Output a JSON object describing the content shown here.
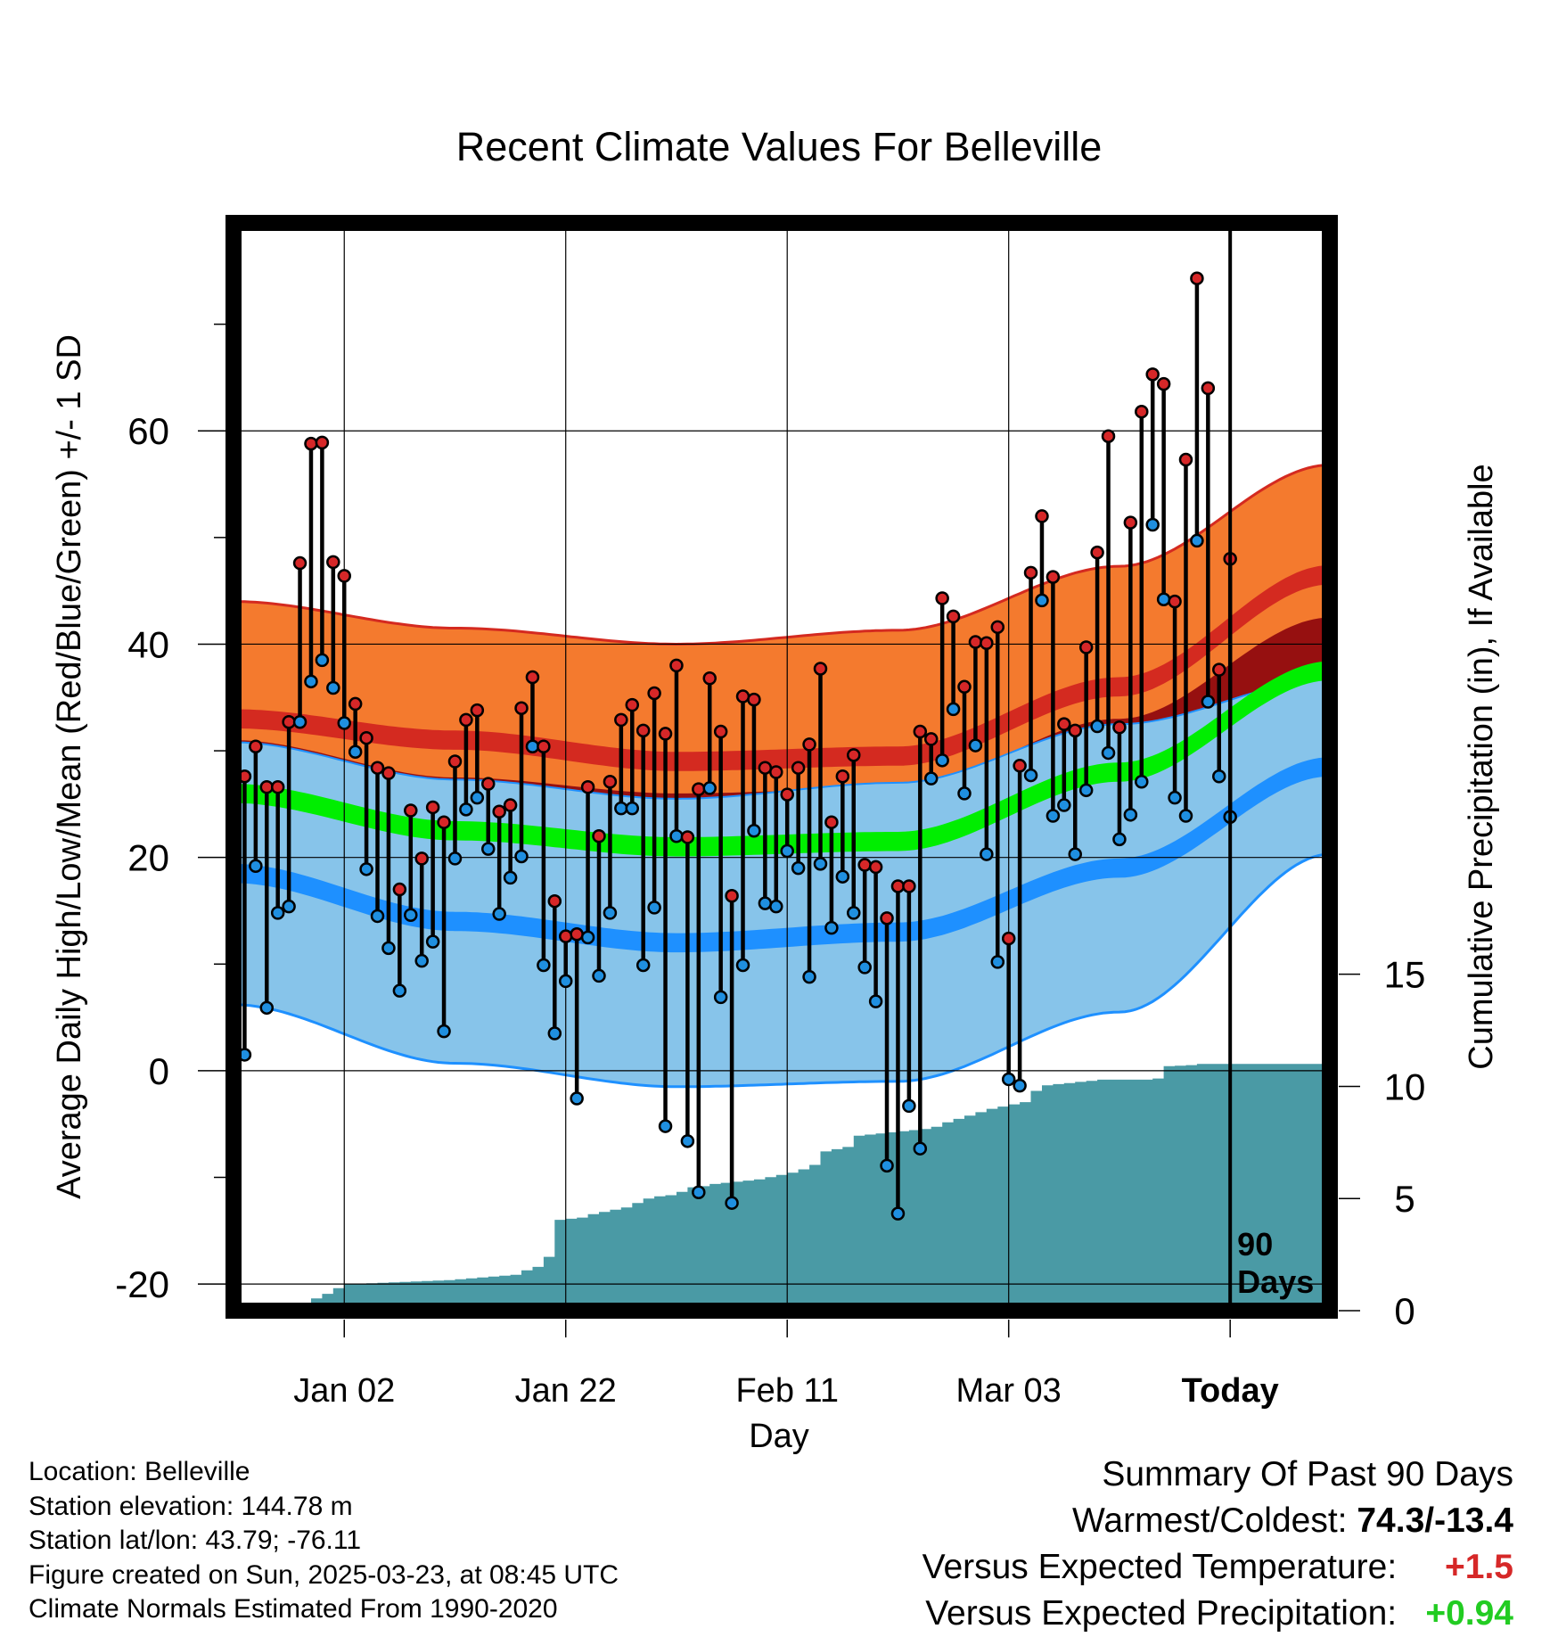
{
  "chart_data": {
    "type": "line",
    "title": "Recent Climate Values For Belleville",
    "xlabel": "Day",
    "ylabel_left": "Average Daily High/Low/Mean (Red/Blue/Green) +/- 1 SD",
    "ylabel_right": "Cumulative Precipitation (in), If Available",
    "x_tick_labels": [
      "Jan 02",
      "Jan 22",
      "Feb 11",
      "Mar 03",
      "Today"
    ],
    "x_tick_days": [
      -80,
      -60,
      -40,
      -20,
      0
    ],
    "y_left_ticks": [
      "-20",
      "0",
      "20",
      "40",
      "60"
    ],
    "y_left_tick_values": [
      -20,
      0,
      20,
      40,
      60
    ],
    "y_left_range": [
      -22.5,
      79.5
    ],
    "y_right_ticks": [
      "0",
      "5",
      "10",
      "15"
    ],
    "y_right_tick_values": [
      0,
      5,
      10,
      15
    ],
    "y_right_range": [
      0,
      48.5
    ],
    "x_range": [
      -90,
      9
    ],
    "grid": true,
    "today_marker": {
      "x": 0,
      "label_line1": "90",
      "label_line2": "Days"
    },
    "normals": {
      "days": [
        -90,
        -70,
        -50,
        -30,
        -10,
        9
      ],
      "high_mean": [
        33,
        31,
        29,
        29.5,
        36,
        46.5
      ],
      "high_sd": [
        11,
        10.5,
        11,
        11.8,
        11.3,
        10.3
      ],
      "low_mean": [
        18.5,
        14,
        12,
        13,
        19,
        28.5
      ],
      "low_sd": [
        12.3,
        13.3,
        13.5,
        14,
        13.5,
        8.2
      ],
      "mean": [
        26,
        22.5,
        21,
        21.5,
        28,
        37.5
      ],
      "band_halfwidth": 0.9,
      "mean_sd": 5
    },
    "series": [
      {
        "name": "High",
        "color": "#d62728",
        "values": [
          27.6,
          30.4,
          26.6,
          26.6,
          32.7,
          47.6,
          58.8,
          58.9,
          47.7,
          46.4,
          34.4,
          31.2,
          28.4,
          27.9,
          17,
          24.4,
          19.9,
          24.7,
          23.3,
          29,
          32.9,
          33.8,
          26.9,
          24.3,
          24.9,
          34,
          36.9,
          30.4,
          15.9,
          12.6,
          12.8,
          26.6,
          22,
          27.1,
          32.9,
          34.3,
          31.9,
          35.4,
          31.6,
          38,
          21.9,
          26.4,
          36.8,
          31.8,
          16.4,
          35.1,
          34.8,
          28.4,
          28,
          25.9,
          28.4,
          30.6,
          37.7,
          23.3,
          27.6,
          29.6,
          19.3,
          19.1,
          14.3,
          17.3,
          17.3,
          31.8,
          31.1,
          44.3,
          42.6,
          36,
          40.2,
          40.1,
          41.6,
          12.4,
          28.6,
          46.7,
          52,
          46.3,
          32.5,
          31.9,
          39.7,
          48.6,
          59.5,
          32.2,
          51.4,
          61.8,
          65.3,
          64.4,
          44,
          57.3,
          74.3,
          64,
          37.6,
          48
        ]
      },
      {
        "name": "Low",
        "color": "#1f8fe0",
        "values": [
          1.5,
          19.2,
          5.9,
          14.8,
          15.4,
          32.7,
          36.5,
          38.5,
          35.9,
          32.6,
          29.9,
          18.9,
          14.5,
          11.5,
          7.5,
          14.6,
          10.3,
          12.1,
          3.7,
          19.9,
          24.5,
          25.6,
          20.8,
          14.7,
          18.1,
          20.1,
          30.4,
          9.9,
          3.5,
          8.4,
          -2.6,
          12.5,
          8.9,
          14.8,
          24.6,
          24.6,
          9.9,
          15.3,
          -5.2,
          22,
          -6.6,
          -11.4,
          26.5,
          6.9,
          -12.4,
          9.9,
          22.5,
          15.7,
          15.4,
          20.6,
          19,
          8.8,
          19.4,
          13.4,
          18.2,
          14.8,
          9.7,
          6.5,
          -8.9,
          -13.4,
          -3.3,
          -7.3,
          27.4,
          29.1,
          33.9,
          26,
          30.5,
          20.3,
          10.2,
          -0.8,
          -1.4,
          27.7,
          44.1,
          23.9,
          24.9,
          20.3,
          26.3,
          32.3,
          29.8,
          21.7,
          24,
          27.1,
          51.2,
          44.2,
          25.6,
          23.9,
          49.7,
          34.6,
          27.6,
          23.8
        ]
      },
      {
        "name": "Precipitation",
        "color": "#4a9aa5",
        "values": [
          0,
          0,
          0,
          0,
          0,
          0.15,
          0.35,
          0.55,
          0.75,
          1,
          1.2,
          1.2,
          1.22,
          1.24,
          1.26,
          1.28,
          1.3,
          1.32,
          1.34,
          1.36,
          1.4,
          1.44,
          1.48,
          1.52,
          1.56,
          1.6,
          1.8,
          1.95,
          2.4,
          4.05,
          4.1,
          4.15,
          4.3,
          4.4,
          4.5,
          4.6,
          4.8,
          5,
          5.1,
          5.15,
          5.3,
          5.5,
          5.55,
          5.65,
          5.7,
          5.75,
          5.8,
          5.85,
          5.95,
          6.05,
          6.15,
          6.3,
          6.5,
          7.1,
          7.2,
          7.3,
          7.8,
          7.85,
          7.9,
          7.95,
          8,
          8.05,
          8.1,
          8.2,
          8.4,
          8.55,
          8.7,
          8.85,
          9,
          9.1,
          9.2,
          9.3,
          9.8,
          10.05,
          10.1,
          10.15,
          10.2,
          10.25,
          10.3,
          10.3,
          10.3,
          10.3,
          10.3,
          10.35,
          10.9,
          10.92,
          10.95,
          11,
          11,
          11
        ]
      }
    ]
  },
  "footer_left": {
    "location": "Location: Belleville",
    "elevation": "Station elevation: 144.78 m",
    "latlon": "Station lat/lon: 43.79; -76.11",
    "created": "Figure created on Sun, 2025-03-23, at 08:45 UTC",
    "normals": "Climate Normals Estimated From 1990-2020"
  },
  "footer_right": {
    "heading": "Summary Of Past 90 Days",
    "warmest_label": "Warmest/Coldest:",
    "warmest_value": "74.3/-13.4",
    "temp_label": "Versus Expected Temperature:",
    "temp_value": "+1.5",
    "precip_label": "Versus Expected Precipitation:",
    "precip_value": "+0.94"
  },
  "colors": {
    "high_band": "#f47a2e",
    "high_band_edge": "#d42a20",
    "mid_band": "#961010",
    "mean_line": "#00ee00",
    "low_band": "#87c4ea",
    "low_line": "#1e90ff",
    "precip_fill": "#4a9aa5",
    "high_marker": "#d62728",
    "low_marker": "#1f8fe0"
  }
}
